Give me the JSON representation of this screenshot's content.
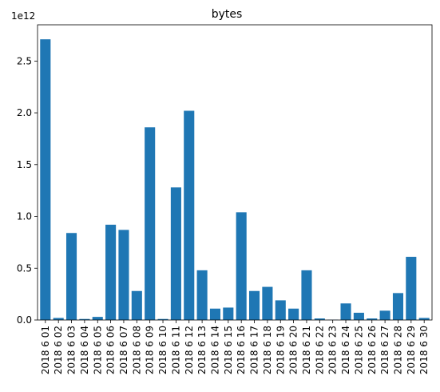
{
  "chart_data": {
    "type": "bar",
    "title": "bytes",
    "xlabel": "",
    "ylabel": "",
    "y_offset_label": "1e12",
    "ylim": [
      0,
      2.85
    ],
    "y_ticks": [
      0.0,
      0.5,
      1.0,
      1.5,
      2.0,
      2.5
    ],
    "y_tick_labels": [
      "0.0",
      "0.5",
      "1.0",
      "1.5",
      "2.0",
      "2.5"
    ],
    "grid": false,
    "bar_color": "#1f77b4",
    "categories": [
      "2018 6 01",
      "2018 6 02",
      "2018 6 03",
      "2018 6 04",
      "2018 6 05",
      "2018 6 06",
      "2018 6 07",
      "2018 6 08",
      "2018 6 09",
      "2018 6 10",
      "2018 6 11",
      "2018 6 12",
      "2018 6 13",
      "2018 6 14",
      "2018 6 15",
      "2018 6 16",
      "2018 6 17",
      "2018 6 18",
      "2018 6 19",
      "2018 6 20",
      "2018 6 21",
      "2018 6 22",
      "2018 6 23",
      "2018 6 24",
      "2018 6 25",
      "2018 6 26",
      "2018 6 27",
      "2018 6 28",
      "2018 6 29",
      "2018 6 30"
    ],
    "values": [
      2.71,
      0.02,
      0.84,
      0.01,
      0.03,
      0.92,
      0.87,
      0.28,
      1.86,
      0.01,
      1.28,
      2.02,
      0.48,
      0.11,
      0.12,
      1.04,
      0.28,
      0.32,
      0.19,
      0.11,
      0.48,
      0.015,
      0.003,
      0.16,
      0.07,
      0.015,
      0.09,
      0.26,
      0.61,
      0.02
    ]
  }
}
